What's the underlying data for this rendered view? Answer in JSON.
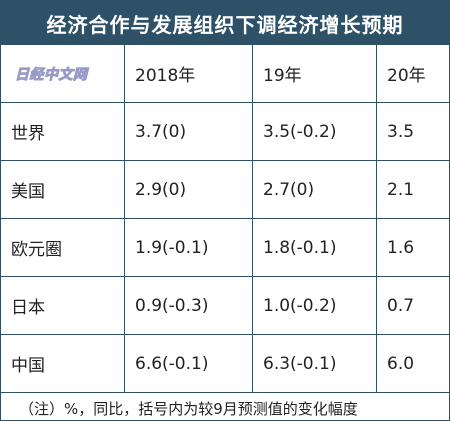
{
  "title": "经济合作与发展组织下调经济增长预期",
  "watermark": "日经中文网",
  "columns": [
    "2018年",
    "19年",
    "20年"
  ],
  "rows": [
    {
      "label": "世界",
      "y2018": "3.7(0)",
      "y2019": "3.5(-0.2)",
      "y2020": "3.5"
    },
    {
      "label": "美国",
      "y2018": "2.9(0)",
      "y2019": "2.7(0)",
      "y2020": "2.1"
    },
    {
      "label": "欧元圈",
      "y2018": "1.9(-0.1)",
      "y2019": "1.8(-0.1)",
      "y2020": "1.6"
    },
    {
      "label": "日本",
      "y2018": "0.9(-0.3)",
      "y2019": "1.0(-0.2)",
      "y2020": "0.7"
    },
    {
      "label": "中国",
      "y2018": "6.6(-0.1)",
      "y2019": "6.3(-0.1)",
      "y2020": "6.0"
    }
  ],
  "note": "（注）%，同比，括号内为较9月预测值的变化幅度"
}
